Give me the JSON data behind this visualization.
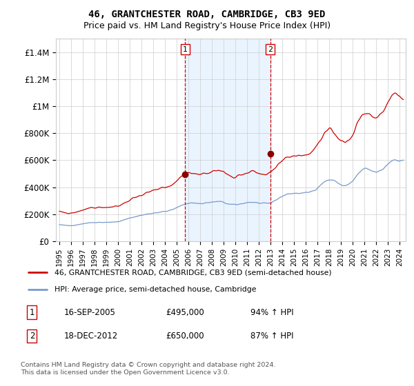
{
  "title": "46, GRANTCHESTER ROAD, CAMBRIDGE, CB3 9ED",
  "subtitle": "Price paid vs. HM Land Registry's House Price Index (HPI)",
  "title_fontsize": 10,
  "subtitle_fontsize": 9,
  "ylim": [
    0,
    1500000
  ],
  "xlim_start": 1994.7,
  "xlim_end": 2024.5,
  "background_color": "#ffffff",
  "plot_bg_color": "#ffffff",
  "grid_color": "#cccccc",
  "shade_color": "#ddeeff",
  "marker1_x": 2005.72,
  "marker2_x": 2012.97,
  "sale1_price_val": 495000,
  "sale2_price_val": 650000,
  "sale1_date": "16-SEP-2005",
  "sale1_price": "£495,000",
  "sale1_hpi": "94% ↑ HPI",
  "sale2_date": "18-DEC-2012",
  "sale2_price": "£650,000",
  "sale2_hpi": "87% ↑ HPI",
  "legend_label1": "46, GRANTCHESTER ROAD, CAMBRIDGE, CB3 9ED (semi-detached house)",
  "legend_label2": "HPI: Average price, semi-detached house, Cambridge",
  "footer": "Contains HM Land Registry data © Crown copyright and database right 2024.\nThis data is licensed under the Open Government Licence v3.0.",
  "line1_color": "#cc0000",
  "line2_color": "#7799cc",
  "dot_color": "#880000",
  "ytick_labels": [
    "£0",
    "£200K",
    "£400K",
    "£600K",
    "£800K",
    "£1M",
    "£1.2M",
    "£1.4M"
  ],
  "ytick_values": [
    0,
    200000,
    400000,
    600000,
    800000,
    1000000,
    1200000,
    1400000
  ],
  "hpi_base": 82000,
  "prop_base": 160000
}
